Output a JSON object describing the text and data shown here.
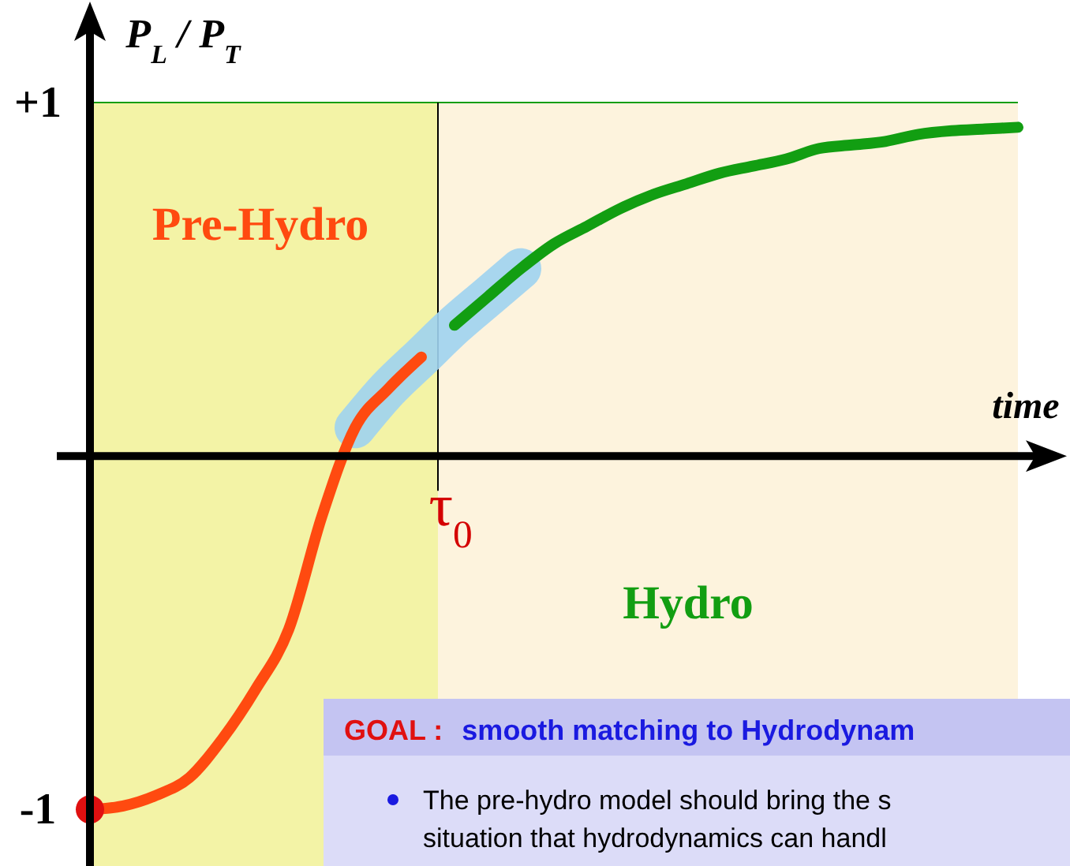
{
  "chart_data": {
    "type": "line",
    "ylabel": "P$_{L}$ / P$_{T}$",
    "xlabel": "time",
    "categories": [
      null,
      null,
      null,
      null,
      null,
      null,
      null,
      null,
      null,
      null,
      null,
      null,
      null,
      null,
      null,
      null,
      null,
      null,
      null,
      null,
      null,
      null,
      null,
      null,
      null,
      null,
      null,
      null,
      null
    ],
    "ylim": [
      -1.16,
      1
    ],
    "yticks": [
      {
        "value": 1,
        "label": "+1"
      },
      {
        "value": -1,
        "label": "-1"
      }
    ],
    "series": [
      {
        "color": "#ff4a10",
        "values": [
          -1,
          -0.99,
          -0.96,
          -0.91,
          -0.8,
          -0.66,
          -0.49,
          -0.17,
          0.08,
          0.19,
          0.28,
          null,
          null,
          null,
          null,
          null,
          null,
          null,
          null,
          null,
          null,
          null,
          null,
          null,
          null,
          null,
          null,
          null,
          null
        ]
      },
      {
        "color": "#129e12",
        "values": [
          null,
          null,
          null,
          null,
          null,
          null,
          null,
          null,
          null,
          null,
          null,
          0.37,
          0.45,
          0.53,
          0.6,
          0.65,
          0.7,
          0.74,
          0.77,
          0.8,
          0.82,
          0.84,
          0.87,
          0.88,
          0.89,
          0.91,
          0.92,
          0.925,
          0.93
        ]
      }
    ],
    "ref_lines": [
      {
        "axis": "y",
        "value": 1,
        "color": "#129e12"
      }
    ],
    "annotations": [
      "Pre-Hydro",
      "Hydro",
      "τ$_{0}$",
      "GOAL :",
      "smooth matching to Hydrodynam",
      "The pre-hydro model should bring the s",
      "situation that hydrodynamics can handl"
    ]
  }
}
